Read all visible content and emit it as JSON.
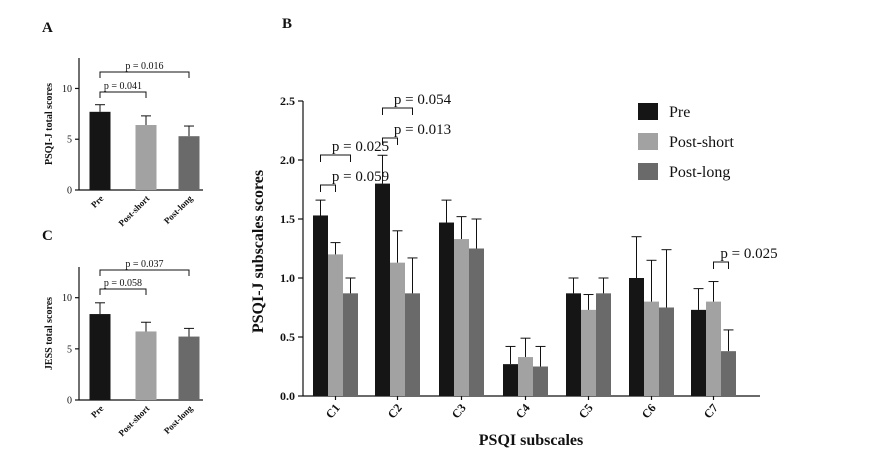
{
  "panels": {
    "a": "A",
    "b": "B",
    "c": "C"
  },
  "colors": {
    "pre": "#151515",
    "post_short": "#a2a2a2",
    "post_long": "#6a6a6a"
  },
  "chart_data": [
    {
      "id": "A",
      "type": "bar",
      "ylabel": "PSQI-J total scores",
      "categories": [
        "Pre",
        "Post-short",
        "Post-long"
      ],
      "values": [
        7.7,
        6.4,
        5.3
      ],
      "errors": [
        0.7,
        0.9,
        1.0
      ],
      "colors": [
        "#151515",
        "#a2a2a2",
        "#6a6a6a"
      ],
      "ylim": [
        0,
        13
      ],
      "yticks": [
        "0",
        "5",
        "10"
      ],
      "annotations": [
        {
          "text": "p = 0.041",
          "from": 0,
          "to": 1
        },
        {
          "text": "p = 0.016",
          "from": 0,
          "to": 2
        }
      ]
    },
    {
      "id": "C",
      "type": "bar",
      "ylabel": "JESS total scores",
      "categories": [
        "Pre",
        "Post-short",
        "Post-long"
      ],
      "values": [
        8.4,
        6.7,
        6.2
      ],
      "errors": [
        1.1,
        0.9,
        0.8
      ],
      "colors": [
        "#151515",
        "#a2a2a2",
        "#6a6a6a"
      ],
      "ylim": [
        0,
        13
      ],
      "yticks": [
        "0",
        "5",
        "10"
      ],
      "annotations": [
        {
          "text": "p = 0.058",
          "from": 0,
          "to": 1
        },
        {
          "text": "p = 0.037",
          "from": 0,
          "to": 2
        }
      ]
    },
    {
      "id": "B",
      "type": "bar",
      "xlabel": "PSQI subscales",
      "ylabel": "PSQI-J subscales scores",
      "categories": [
        "C1",
        "C2",
        "C3",
        "C4",
        "C5",
        "C6",
        "C7"
      ],
      "ylim": [
        0,
        2.5
      ],
      "yticks": [
        "0.0",
        "0.5",
        "1.0",
        "1.5",
        "2.0",
        "2.5"
      ],
      "legend_position": "top-right",
      "series": [
        {
          "name": "Pre",
          "color": "#151515",
          "values": [
            1.53,
            1.8,
            1.47,
            0.27,
            0.87,
            1.0,
            0.73
          ],
          "errors": [
            0.13,
            0.24,
            0.19,
            0.15,
            0.13,
            0.35,
            0.18
          ]
        },
        {
          "name": "Post-short",
          "color": "#a2a2a2",
          "values": [
            1.2,
            1.13,
            1.33,
            0.33,
            0.73,
            0.8,
            0.8
          ],
          "errors": [
            0.1,
            0.27,
            0.19,
            0.16,
            0.13,
            0.35,
            0.17
          ]
        },
        {
          "name": "Post-long",
          "color": "#6a6a6a",
          "values": [
            0.87,
            0.87,
            1.25,
            0.25,
            0.87,
            0.75,
            0.38
          ],
          "errors": [
            0.13,
            0.3,
            0.25,
            0.17,
            0.13,
            0.49,
            0.18
          ]
        }
      ],
      "annotations": [
        {
          "text": "p = 0.059",
          "category": 0,
          "from": 0,
          "to": 1
        },
        {
          "text": "p = 0.025",
          "category": 0,
          "from": 0,
          "to": 2
        },
        {
          "text": "p = 0.013",
          "category": 1,
          "from": 0,
          "to": 1
        },
        {
          "text": "p = 0.054",
          "category": 1,
          "from": 0,
          "to": 2
        },
        {
          "text": "p = 0.025",
          "category": 6,
          "from": 1,
          "to": 2
        }
      ]
    }
  ]
}
